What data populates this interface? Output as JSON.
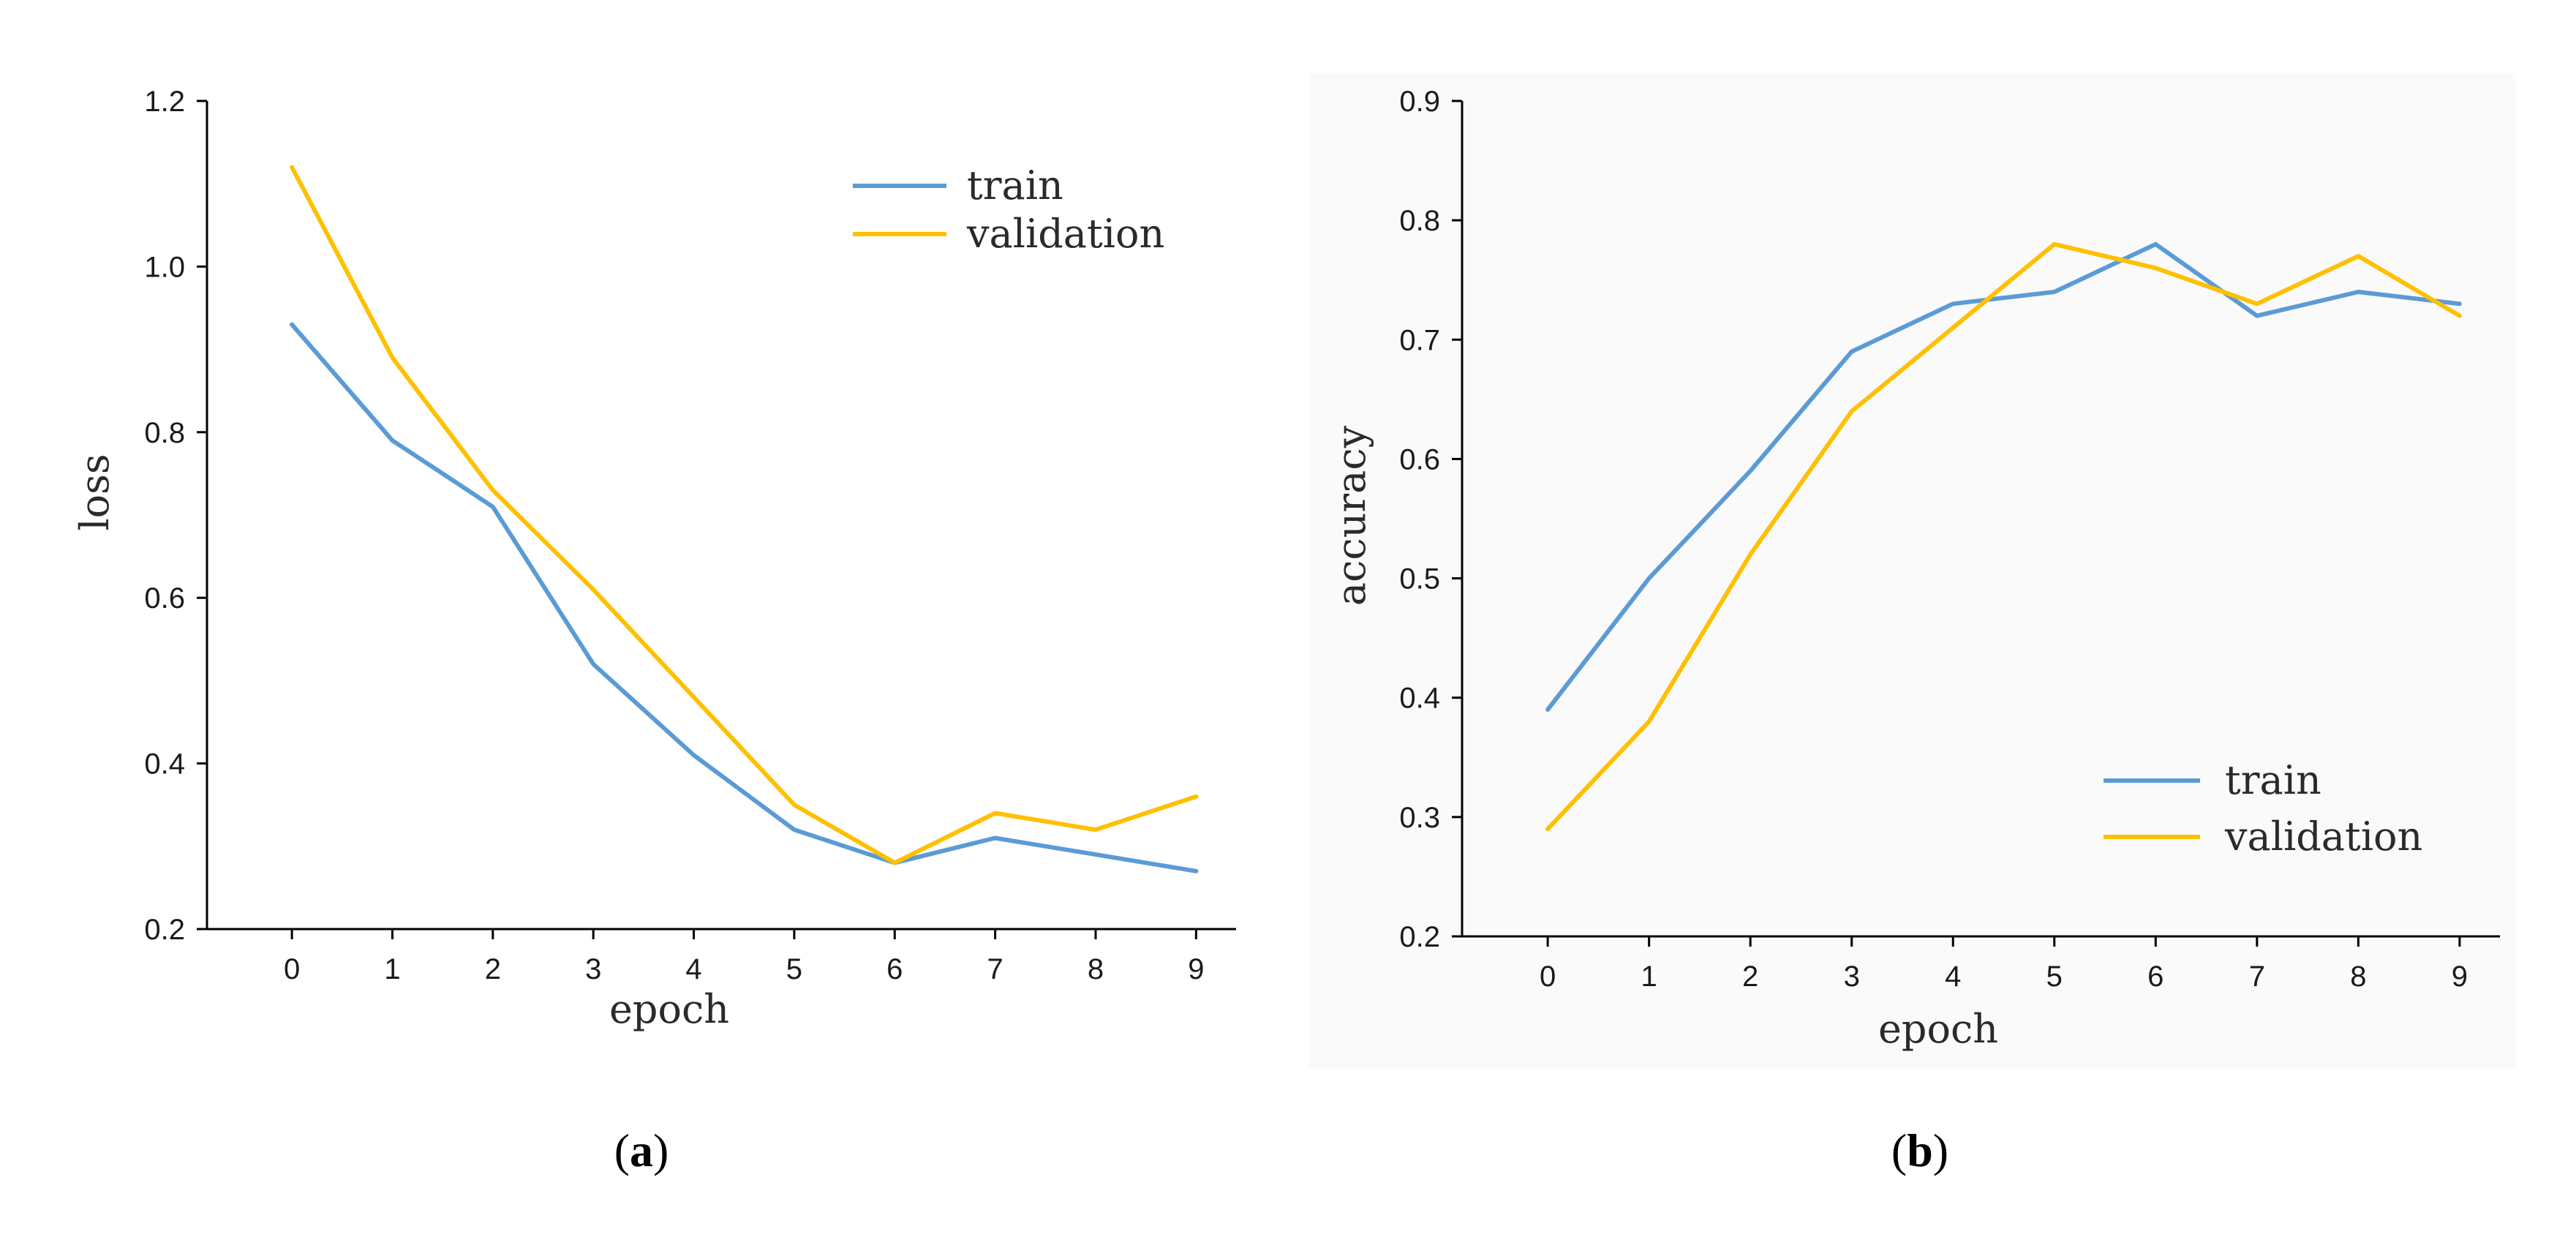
{
  "chart_data": [
    {
      "type": "line",
      "title": "",
      "xlabel": "epoch",
      "ylabel": "loss",
      "x": [
        0,
        1,
        2,
        3,
        4,
        5,
        6,
        7,
        8,
        9
      ],
      "x_ticks": [
        "0",
        "1",
        "2",
        "3",
        "4",
        "5",
        "6",
        "7",
        "8",
        "9"
      ],
      "y_ticks": [
        "0.2",
        "0.4",
        "0.6",
        "0.8",
        "1.0",
        "1.2"
      ],
      "ylim": [
        0.2,
        1.2
      ],
      "legend_position": "top-right",
      "caption_prefix": "(",
      "caption_letter": "a",
      "caption_suffix": ")",
      "series": [
        {
          "name": "train",
          "color": "#5B9BD5",
          "values": [
            0.93,
            0.79,
            0.71,
            0.52,
            0.41,
            0.32,
            0.28,
            0.31,
            0.29,
            0.27
          ]
        },
        {
          "name": "validation",
          "color": "#FFC000",
          "values": [
            1.12,
            0.89,
            0.73,
            0.61,
            0.48,
            0.35,
            0.28,
            0.34,
            0.32,
            0.36
          ]
        }
      ]
    },
    {
      "type": "line",
      "title": "",
      "xlabel": "epoch",
      "ylabel": "accuracy",
      "x": [
        0,
        1,
        2,
        3,
        4,
        5,
        6,
        7,
        8,
        9
      ],
      "x_ticks": [
        "0",
        "1",
        "2",
        "3",
        "4",
        "5",
        "6",
        "7",
        "8",
        "9"
      ],
      "y_ticks": [
        "0.2",
        "0.3",
        "0.4",
        "0.5",
        "0.6",
        "0.7",
        "0.8",
        "0.9"
      ],
      "ylim": [
        0.2,
        0.9
      ],
      "legend_position": "bottom-right",
      "caption_prefix": "(",
      "caption_letter": "b",
      "caption_suffix": ")",
      "series": [
        {
          "name": "train",
          "color": "#5B9BD5",
          "values": [
            0.39,
            0.5,
            0.59,
            0.69,
            0.73,
            0.74,
            0.78,
            0.72,
            0.74,
            0.73
          ]
        },
        {
          "name": "validation",
          "color": "#FFC000",
          "values": [
            0.29,
            0.38,
            0.52,
            0.64,
            0.71,
            0.78,
            0.76,
            0.73,
            0.77,
            0.72
          ]
        }
      ]
    }
  ]
}
